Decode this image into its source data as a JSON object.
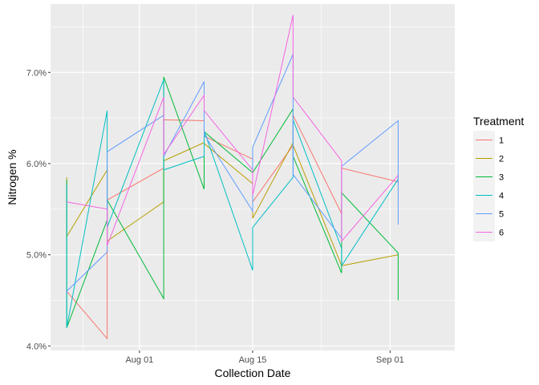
{
  "chart_data": {
    "type": "line",
    "xlabel": "Collection Date",
    "ylabel": "Nitrogen %",
    "x_tick_labels": [
      "Aug 01",
      "Aug 15",
      "Sep 01"
    ],
    "x_tick_dates": [
      "2019-08-01",
      "2019-08-15",
      "2019-09-01"
    ],
    "y_tick_labels": [
      "4.0%",
      "5.0%",
      "6.0%",
      "7.0%"
    ],
    "y_ticks": [
      4.0,
      5.0,
      6.0,
      7.0
    ],
    "xlim": [
      "2019-07-21",
      "2019-09-09"
    ],
    "ylim": [
      3.95,
      7.75
    ],
    "grid": true,
    "legend_title": "Treatment",
    "legend_position": "right",
    "dates": [
      "2019-07-23",
      "2019-07-28",
      "2019-08-04",
      "2019-08-09",
      "2019-08-15",
      "2019-08-20",
      "2019-08-26",
      "2019-09-02",
      "2019-09-07"
    ],
    "series": [
      {
        "name": "1",
        "color": "#F8766D",
        "points": [
          [
            4.58,
            4.6
          ],
          [
            4.08,
            5.6
          ],
          [
            5.95,
            6.48
          ],
          [
            6.47,
            6.3
          ],
          [
            6.05,
            5.58
          ],
          [
            6.2,
            6.53
          ],
          [
            5.45,
            5.95
          ],
          [
            5.8,
            5.78
          ]
        ]
      },
      {
        "name": "2",
        "color": "#B79F00",
        "points": [
          [
            5.85,
            5.2
          ],
          [
            5.93,
            5.15
          ],
          [
            5.58,
            6.03
          ],
          [
            6.23,
            6.22
          ],
          [
            5.78,
            5.4
          ],
          [
            6.23,
            6.2
          ],
          [
            4.88,
            4.88
          ],
          [
            5.0,
            5.0
          ]
        ]
      },
      {
        "name": "3",
        "color": "#00BA38",
        "points": [
          [
            5.82,
            4.2
          ],
          [
            5.38,
            5.6
          ],
          [
            4.52,
            6.95
          ],
          [
            5.72,
            6.35
          ],
          [
            5.9,
            5.9
          ],
          [
            6.6,
            6.08
          ],
          [
            4.8,
            5.68
          ],
          [
            5.02,
            4.5
          ]
        ]
      },
      {
        "name": "4",
        "color": "#00BFC4",
        "points": [
          [
            5.77,
            4.2
          ],
          [
            6.58,
            5.3
          ],
          [
            6.92,
            5.93
          ],
          [
            6.08,
            6.36
          ],
          [
            4.83,
            5.3
          ],
          [
            5.85,
            6.48
          ],
          [
            5.07,
            4.88
          ],
          [
            5.83,
            5.88
          ]
        ]
      },
      {
        "name": "5",
        "color": "#619CFF",
        "points": [
          [
            4.58,
            4.6
          ],
          [
            5.03,
            6.13
          ],
          [
            6.53,
            6.08
          ],
          [
            6.9,
            6.32
          ],
          [
            5.48,
            6.18
          ],
          [
            7.2,
            5.88
          ],
          [
            5.18,
            5.97
          ],
          [
            6.47,
            5.33
          ]
        ]
      },
      {
        "name": "6",
        "color": "#F564E3",
        "points": [
          [
            5.58,
            5.58
          ],
          [
            5.5,
            5.1
          ],
          [
            6.73,
            6.1
          ],
          [
            6.75,
            6.58
          ],
          [
            5.93,
            5.65
          ],
          [
            7.63,
            6.73
          ],
          [
            6.03,
            5.15
          ],
          [
            5.87,
            5.87
          ]
        ]
      }
    ]
  }
}
